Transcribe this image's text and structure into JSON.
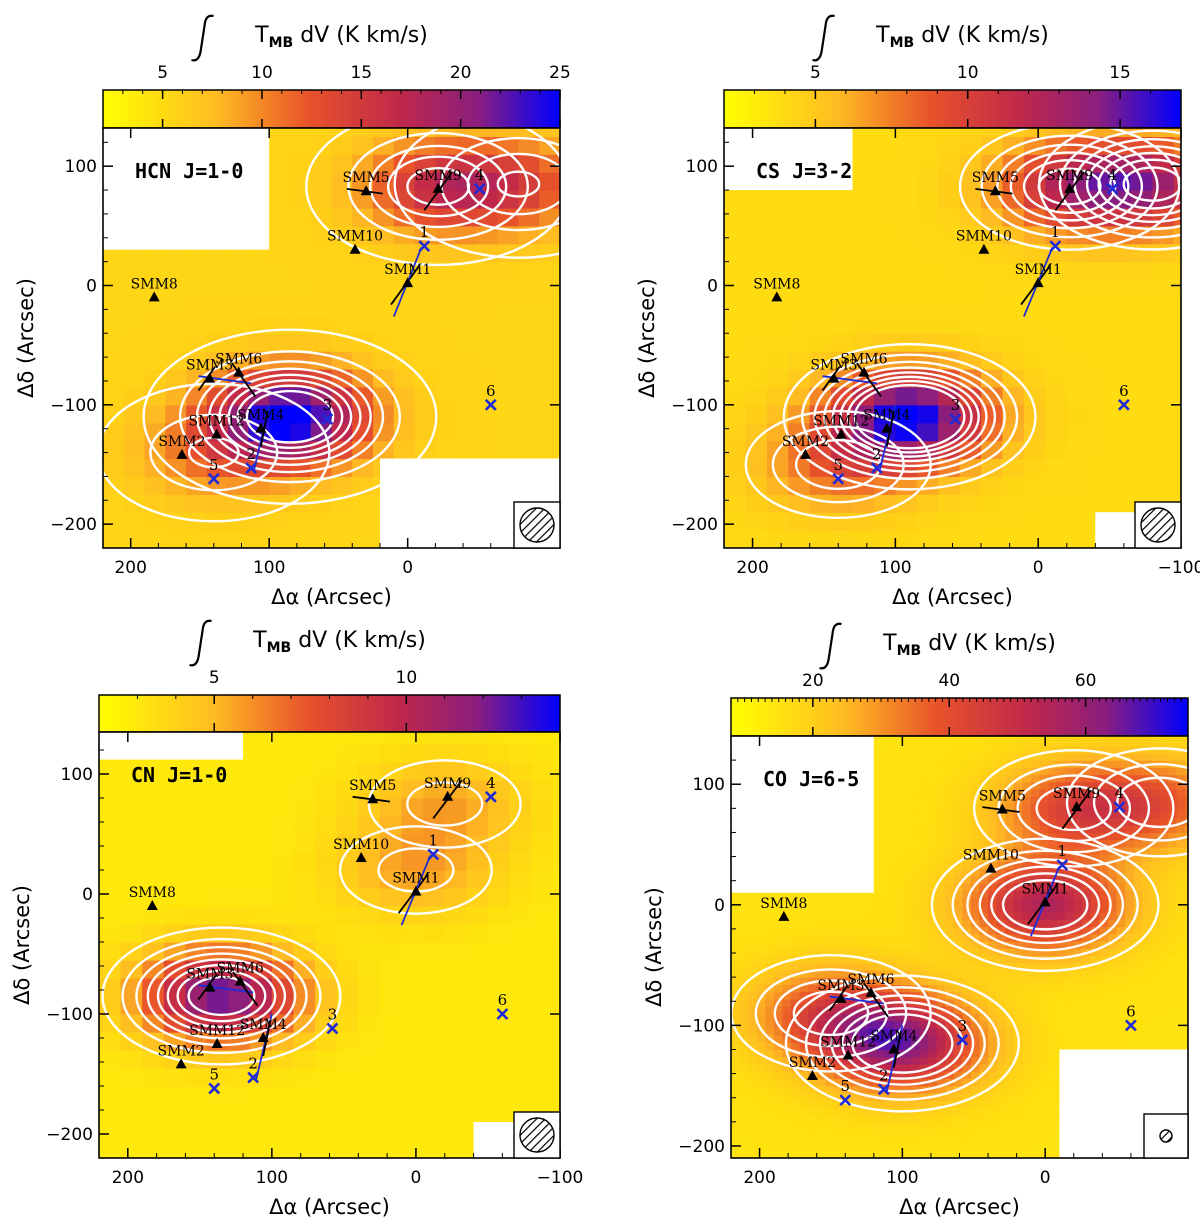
{
  "chart_data": [
    {
      "type": "heatmap",
      "label": "HCN J=1-0",
      "xlabel": "Δα (Arcsec)",
      "ylabel": "Δδ (Arcsec)",
      "colorbar": {
        "title": "∫ T_MB dV (K km/s)",
        "title_pre": "T",
        "title_sub": "MB",
        "title_post": " dV (K km/s)",
        "range": [
          2,
          25
        ],
        "ticks": [
          5,
          10,
          15,
          20,
          25
        ]
      },
      "xlim": [
        220,
        -110
      ],
      "ylim": [
        -220,
        132
      ],
      "xticks": [
        200,
        100,
        0
      ],
      "xticklabels": [
        "200",
        "100",
        "0"
      ],
      "yticks": [
        100,
        0,
        -100,
        -200
      ],
      "yticklabels": [
        "100",
        "0",
        "−100",
        "−200"
      ],
      "peaks": [
        [
          85,
          -110,
          20
        ],
        [
          -22,
          83,
          10
        ],
        [
          -80,
          85,
          7
        ],
        [
          140,
          -140,
          5
        ]
      ],
      "background": 5.5,
      "blanks": [
        [
          220,
          132,
          100,
          30
        ],
        [
          20,
          -145,
          -110,
          -220
        ]
      ],
      "contour_levels": [
        4,
        6,
        8,
        10,
        12,
        14,
        16,
        18,
        20
      ]
    },
    {
      "type": "heatmap",
      "label": "CS J=3-2",
      "xlabel": "Δα (Arcsec)",
      "ylabel": "Δδ (Arcsec)",
      "colorbar": {
        "title": "∫ T_MB dV (K km/s)",
        "title_pre": "T",
        "title_sub": "MB",
        "title_post": " dV (K km/s)",
        "range": [
          2,
          17
        ],
        "ticks": [
          5,
          10,
          15
        ]
      },
      "xlim": [
        220,
        -100
      ],
      "ylim": [
        -220,
        132
      ],
      "xticks": [
        200,
        100,
        0,
        -100
      ],
      "xticklabels": [
        "200",
        "100",
        "0",
        "−100"
      ],
      "yticks": [
        100,
        0,
        -100,
        -200
      ],
      "yticklabels": [
        "100",
        "0",
        "−100",
        "−200"
      ],
      "peaks": [
        [
          90,
          -110,
          13
        ],
        [
          -22,
          83,
          7
        ],
        [
          -80,
          85,
          8
        ],
        [
          140,
          -150,
          4
        ]
      ],
      "background": 4.0,
      "blanks": [
        [
          220,
          132,
          130,
          80
        ],
        [
          -40,
          -190,
          -100,
          -220
        ]
      ],
      "contour_levels": [
        4,
        5,
        6,
        7,
        8,
        9,
        10,
        11,
        12
      ]
    },
    {
      "type": "heatmap",
      "label": "CN J=1-0",
      "xlabel": "Δα (Arcsec)",
      "ylabel": "Δδ (Arcsec)",
      "colorbar": {
        "title": "∫ T_MB dV (K km/s)",
        "title_pre": "T",
        "title_sub": "MB",
        "title_post": " dV (K km/s)",
        "range": [
          2,
          14
        ],
        "ticks": [
          5,
          10
        ]
      },
      "xlim": [
        220,
        -100
      ],
      "ylim": [
        -220,
        135
      ],
      "xticks": [
        200,
        100,
        0,
        -100
      ],
      "xticklabels": [
        "200",
        "100",
        "0",
        "−100"
      ],
      "yticks": [
        100,
        0,
        -100,
        -200
      ],
      "yticklabels": [
        "100",
        "0",
        "−100",
        "−200"
      ],
      "peaks": [
        [
          135,
          -85,
          9.5
        ],
        [
          0,
          20,
          2.5
        ],
        [
          -20,
          75,
          2.5
        ]
      ],
      "background": 3.0,
      "blanks": [
        [
          220,
          135,
          120,
          112
        ],
        [
          -40,
          -190,
          -100,
          -220
        ]
      ],
      "contour_levels": [
        4,
        5,
        6,
        7,
        8,
        9,
        10,
        11
      ]
    },
    {
      "type": "heatmap",
      "label": "CO J=6-5",
      "xlabel": "Δα (Arcsec)",
      "ylabel": "Δδ (Arcsec)",
      "colorbar": {
        "title": "∫ T_MB dV (K km/s)",
        "title_pre": "T",
        "title_sub": "MB",
        "title_post": " dV (K km/s)",
        "range": [
          8,
          75
        ],
        "ticks": [
          20,
          40,
          60
        ]
      },
      "xlim": [
        220,
        -100
      ],
      "ylim": [
        -210,
        140
      ],
      "xticks": [
        200,
        100,
        0
      ],
      "xticklabels": [
        "200",
        "100",
        "0"
      ],
      "yticks": [
        100,
        0,
        -100,
        -200
      ],
      "yticklabels": [
        "100",
        "0",
        "−100",
        "−200"
      ],
      "peaks": [
        [
          100,
          -115,
          45
        ],
        [
          0,
          0,
          40
        ],
        [
          -20,
          80,
          25
        ],
        [
          150,
          -90,
          25
        ],
        [
          -80,
          85,
          20
        ]
      ],
      "background": 15,
      "blanks": [
        [
          220,
          140,
          120,
          10
        ],
        [
          -10,
          -120,
          -100,
          -210
        ]
      ],
      "contour_levels": [
        20,
        25,
        30,
        35,
        40,
        45
      ]
    }
  ],
  "sources": [
    {
      "name": "SMM1",
      "x": 0,
      "y": 2
    },
    {
      "name": "SMM2",
      "x": 163,
      "y": -142
    },
    {
      "name": "SMM3",
      "x": 143,
      "y": -78
    },
    {
      "name": "SMM4",
      "x": 106,
      "y": -120
    },
    {
      "name": "SMM5",
      "x": 30,
      "y": 79
    },
    {
      "name": "SMM6",
      "x": 122,
      "y": -73
    },
    {
      "name": "SMM8",
      "x": 183,
      "y": -10
    },
    {
      "name": "SMM9",
      "x": -22,
      "y": 81
    },
    {
      "name": "SMM10",
      "x": 38,
      "y": 30
    },
    {
      "name": "SMM12",
      "x": 138,
      "y": -125
    }
  ],
  "positions": [
    {
      "name": "1",
      "x": -12,
      "y": 33
    },
    {
      "name": "2",
      "x": 113,
      "y": -153
    },
    {
      "name": "3",
      "x": 58,
      "y": -112
    },
    {
      "name": "4",
      "x": -52,
      "y": 81
    },
    {
      "name": "5",
      "x": 140,
      "y": -162
    },
    {
      "name": "6",
      "x": -60,
      "y": -100
    }
  ]
}
